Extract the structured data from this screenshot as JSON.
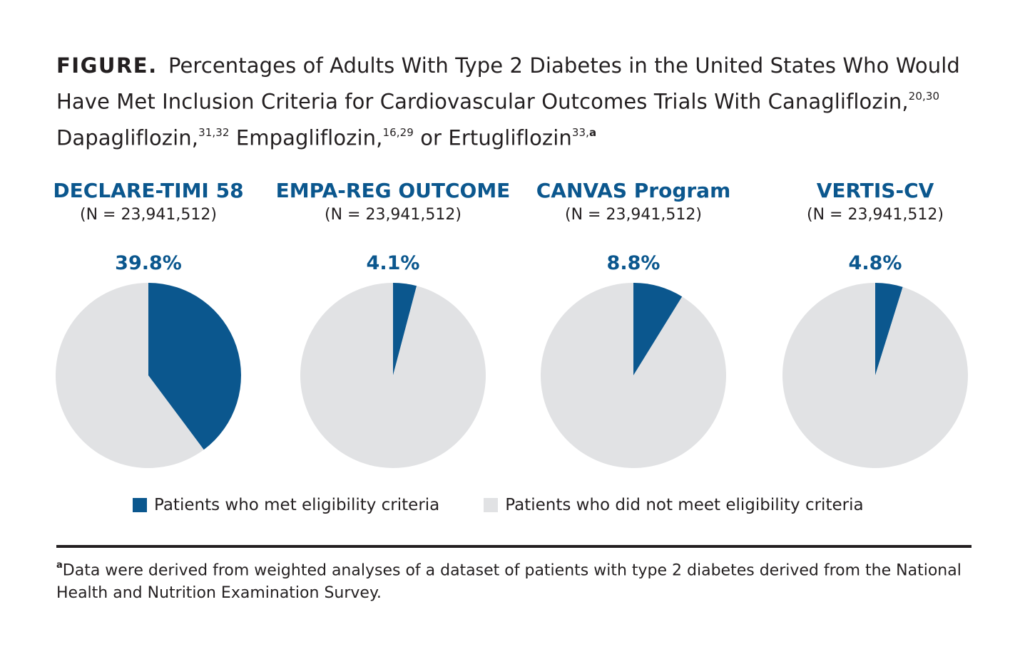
{
  "title": {
    "label": "FIGURE.",
    "line1": "Percentages of Adults With Type 2 Diabetes in the United States Who Would Have Met Inclusion Criteria for Cardiovascular Outcomes Trials With Canagliflozin,",
    "ref1": "20,30",
    "part2": "Dapagliflozin,",
    "ref2": "31,32",
    "part3": "Empagliflozin,",
    "ref3": "16,29",
    "part4": "or Ertugliflozin",
    "ref4": "33,",
    "ref4b": "a"
  },
  "colors": {
    "met": "#0b578e",
    "not_met": "#e1e2e4"
  },
  "chart_data": [
    {
      "type": "pie",
      "title": "DECLARE-TIMI 58",
      "subtitle": "(N = 23,941,512)",
      "value_label": "39.8%",
      "slices": [
        {
          "name": "Patients who met eligibility criteria",
          "value": 39.8
        },
        {
          "name": "Patients who did not meet eligibility criteria",
          "value": 60.2
        }
      ]
    },
    {
      "type": "pie",
      "title": "EMPA-REG OUTCOME",
      "subtitle": "(N = 23,941,512)",
      "value_label": "4.1%",
      "slices": [
        {
          "name": "Patients who met eligibility criteria",
          "value": 4.1
        },
        {
          "name": "Patients who did not meet eligibility criteria",
          "value": 95.9
        }
      ]
    },
    {
      "type": "pie",
      "title": "CANVAS Program",
      "subtitle": "(N = 23,941,512)",
      "value_label": "8.8%",
      "slices": [
        {
          "name": "Patients who met eligibility criteria",
          "value": 8.8
        },
        {
          "name": "Patients who did not meet eligibility criteria",
          "value": 91.2
        }
      ]
    },
    {
      "type": "pie",
      "title": "VERTIS-CV",
      "subtitle": "(N = 23,941,512)",
      "value_label": "4.8%",
      "slices": [
        {
          "name": "Patients who met eligibility criteria",
          "value": 4.8
        },
        {
          "name": "Patients who did not meet eligibility criteria",
          "value": 95.2
        }
      ]
    }
  ],
  "legend": {
    "met": "Patients who met eligibility criteria",
    "not_met": "Patients who did not meet eligibility criteria"
  },
  "footnote": {
    "marker": "a",
    "text": "Data were derived from weighted analyses of a dataset of patients with type 2 diabetes derived from the National Health and Nutrition Examination Survey."
  }
}
